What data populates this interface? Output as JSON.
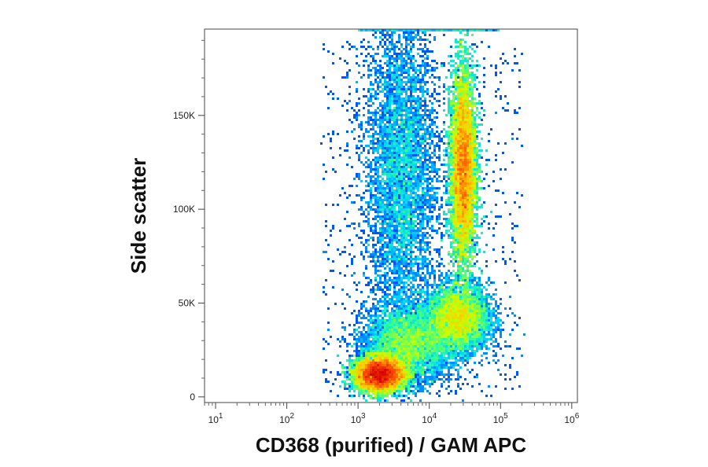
{
  "chart_data": {
    "type": "scatter",
    "subtype": "flow-cytometry-density-plot",
    "title": "",
    "xlabel": "CD368 (purified) / GAM APC",
    "ylabel": "Side scatter",
    "x_scale": "log",
    "xlim": [
      7,
      1200000
    ],
    "ylim": [
      -3000,
      196000
    ],
    "x_ticks": [
      {
        "value": 10,
        "base": "10",
        "exp": "1"
      },
      {
        "value": 100,
        "base": "10",
        "exp": "2"
      },
      {
        "value": 1000,
        "base": "10",
        "exp": "3"
      },
      {
        "value": 10000,
        "base": "10",
        "exp": "4"
      },
      {
        "value": 100000,
        "base": "10",
        "exp": "5"
      },
      {
        "value": 1000000,
        "base": "10",
        "exp": "6"
      }
    ],
    "y_ticks": [
      {
        "value": 0,
        "label": "0"
      },
      {
        "value": 50000,
        "label": "50K"
      },
      {
        "value": 100000,
        "label": "100K"
      },
      {
        "value": 150000,
        "label": "150K"
      }
    ],
    "grid": false,
    "legend": "none",
    "colormap": [
      "#0000b4",
      "#0064ff",
      "#00d2ff",
      "#32ff96",
      "#c8ff00",
      "#ffc800",
      "#ff5000",
      "#d20000"
    ],
    "populations": [
      {
        "x_center": 2000,
        "y_center": 12000,
        "x_spread_decades": 0.17,
        "y_spread": 4500,
        "weight": 3.2
      },
      {
        "x_center": 30000,
        "y_center": 122000,
        "x_spread_decades": 0.09,
        "y_spread": 26000,
        "weight": 3.6
      },
      {
        "x_center": 25000,
        "y_center": 42000,
        "x_spread_decades": 0.22,
        "y_spread": 9000,
        "weight": 1.2
      },
      {
        "x_center": 5000,
        "y_center": 28000,
        "x_spread_decades": 0.3,
        "y_spread": 10000,
        "weight": 0.9
      },
      {
        "x_center": 4000,
        "y_center": 120000,
        "x_spread_decades": 0.25,
        "y_spread": 42000,
        "weight": 0.9
      }
    ]
  }
}
